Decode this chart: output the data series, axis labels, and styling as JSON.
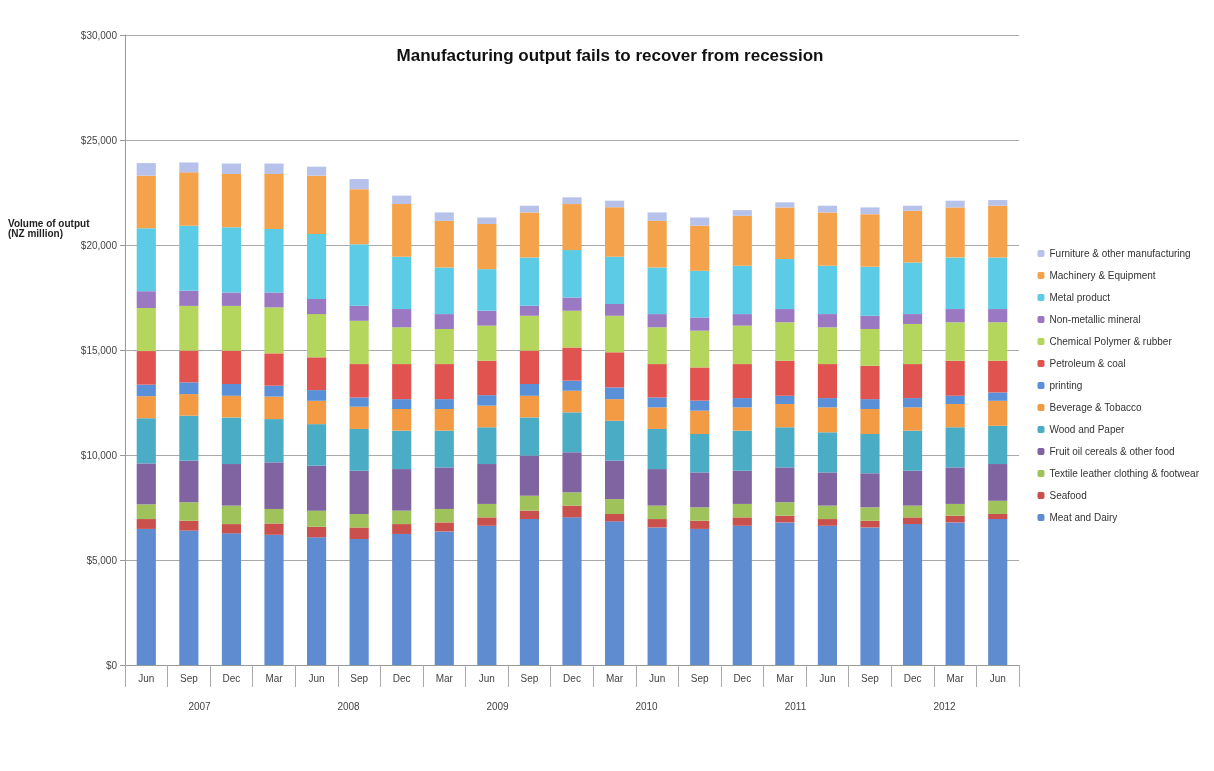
{
  "chart_data": {
    "type": "bar",
    "title": "Manufacturing output fails to recover from recession",
    "ylabel": "Volume of output (NZ million)",
    "categories": [
      "Jun",
      "Sep",
      "Dec",
      "Mar",
      "Jun",
      "Sep",
      "Dec",
      "Mar",
      "Jun",
      "Sep",
      "Dec",
      "Mar",
      "Jun",
      "Sep",
      "Dec",
      "Mar",
      "Jun",
      "Sep",
      "Dec",
      "Mar",
      "Jun"
    ],
    "annotations": [
      "2007",
      "2008",
      "2009",
      "2010",
      "2011",
      "2012"
    ],
    "stacked": true,
    "grid": "y",
    "legend": "right",
    "ylim": [
      0,
      30000
    ],
    "yticks": [
      {
        "value": 0,
        "label": "$0"
      },
      {
        "value": 5000,
        "label": "$5,000"
      },
      {
        "value": 10000,
        "label": "$10,000"
      },
      {
        "value": 15000,
        "label": "$15,000"
      },
      {
        "value": 20000,
        "label": "$20,000"
      },
      {
        "value": 25000,
        "label": "$25,000"
      },
      {
        "value": 30000,
        "label": "$30,000"
      }
    ],
    "series": [
      {
        "name": "Meat and Dairy",
        "color": "#5f8bd0",
        "values": [
          6480,
          6400,
          6270,
          6200,
          6080,
          6000,
          6240,
          6360,
          6630,
          6950,
          7030,
          6840,
          6550,
          6480,
          6630,
          6790,
          6630,
          6550,
          6710,
          6790,
          6950
        ]
      },
      {
        "name": "Seafood",
        "color": "#c9504d",
        "values": [
          470,
          470,
          440,
          540,
          500,
          550,
          470,
          430,
          400,
          400,
          560,
          350,
          400,
          390,
          400,
          320,
          320,
          320,
          320,
          320,
          240
        ]
      },
      {
        "name": "Textile leather clothing & footwear",
        "color": "#9fc35a",
        "values": [
          700,
          880,
          880,
          690,
          770,
          640,
          640,
          640,
          640,
          710,
          630,
          710,
          640,
          640,
          640,
          640,
          640,
          640,
          560,
          560,
          630
        ]
      },
      {
        "name": "Fruit oil cereals & other food",
        "color": "#8064a2",
        "values": [
          1950,
          1980,
          1980,
          2220,
          2140,
          2060,
          1980,
          1980,
          1900,
          1910,
          1910,
          1830,
          1740,
          1660,
          1580,
          1660,
          1580,
          1620,
          1660,
          1740,
          1750
        ]
      },
      {
        "name": "Wood and Paper",
        "color": "#4bacc6",
        "values": [
          2150,
          2140,
          2220,
          2060,
          1980,
          1990,
          1830,
          1750,
          1750,
          1820,
          1900,
          1900,
          1910,
          1830,
          1910,
          1910,
          1910,
          1870,
          1910,
          1910,
          1820
        ]
      },
      {
        "name": "Beverage & Tobacco",
        "color": "#f39a45",
        "values": [
          1050,
          1030,
          1030,
          1070,
          1110,
          1060,
          1030,
          1030,
          1030,
          1030,
          1030,
          1030,
          1030,
          1110,
          1110,
          1110,
          1190,
          1190,
          1110,
          1110,
          1190
        ]
      },
      {
        "name": "printing",
        "color": "#5a90d8",
        "values": [
          550,
          560,
          560,
          520,
          510,
          440,
          470,
          470,
          500,
          560,
          480,
          560,
          470,
          480,
          440,
          390,
          440,
          470,
          440,
          390,
          400
        ]
      },
      {
        "name": "Petroleum & coal",
        "color": "#e0534f",
        "values": [
          1600,
          1510,
          1590,
          1540,
          1560,
          1590,
          1670,
          1670,
          1640,
          1590,
          1580,
          1670,
          1590,
          1580,
          1620,
          1670,
          1620,
          1590,
          1620,
          1670,
          1510
        ]
      },
      {
        "name": "Chemical Polymer & rubber",
        "color": "#b4d65c",
        "values": [
          2050,
          2130,
          2130,
          2190,
          2060,
          2060,
          1750,
          1670,
          1670,
          1660,
          1750,
          1740,
          1750,
          1750,
          1830,
          1830,
          1750,
          1750,
          1910,
          1830,
          1830
        ]
      },
      {
        "name": "Non-metallic mineral",
        "color": "#9a78c2",
        "values": [
          800,
          720,
          640,
          710,
          720,
          720,
          870,
          710,
          710,
          480,
          630,
          560,
          630,
          630,
          550,
          630,
          630,
          630,
          470,
          630,
          630
        ]
      },
      {
        "name": "Metal product",
        "color": "#5ccbe6",
        "values": [
          3000,
          3100,
          3100,
          3020,
          3090,
          2930,
          2490,
          2220,
          1980,
          2300,
          2260,
          2250,
          2220,
          2220,
          2300,
          2380,
          2300,
          2330,
          2460,
          2460,
          2460
        ]
      },
      {
        "name": "Machinery & Equipment",
        "color": "#f5a24c",
        "values": [
          2500,
          2540,
          2540,
          2620,
          2780,
          2620,
          2510,
          2220,
          2150,
          2140,
          2190,
          2360,
          2220,
          2150,
          2380,
          2460,
          2540,
          2510,
          2460,
          2380,
          2460
        ]
      },
      {
        "name": "Furniture & other manufacturing",
        "color": "#b6c2ea",
        "values": [
          600,
          470,
          500,
          500,
          430,
          480,
          400,
          400,
          310,
          320,
          320,
          310,
          400,
          390,
          270,
          240,
          320,
          320,
          240,
          320,
          270
        ]
      }
    ]
  }
}
